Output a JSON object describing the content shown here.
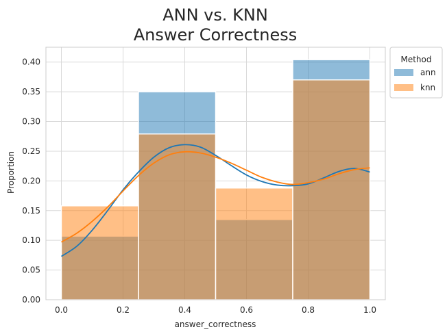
{
  "chart_data": {
    "type": "histogram",
    "title_lines": [
      "ANN vs. KNN",
      "Answer Correctness"
    ],
    "xlabel": "answer_correctness",
    "ylabel": "Proportion",
    "xlim": [
      -0.05,
      1.05
    ],
    "ylim": [
      0,
      0.425
    ],
    "xticks": [
      "0.0",
      "0.2",
      "0.4",
      "0.6",
      "0.8",
      "1.0"
    ],
    "yticks": [
      "0.00",
      "0.05",
      "0.10",
      "0.15",
      "0.20",
      "0.25",
      "0.30",
      "0.35",
      "0.40"
    ],
    "grid": true,
    "bins": [
      [
        0,
        0.25
      ],
      [
        0.25,
        0.5
      ],
      [
        0.5,
        0.75
      ],
      [
        0.75,
        1.0
      ]
    ],
    "series": [
      {
        "name": "ann",
        "color": "#1f77b4",
        "values": [
          0.107,
          0.35,
          0.135,
          0.404
        ],
        "kde": [
          [
            0,
            0.073
          ],
          [
            0.05,
            0.09
          ],
          [
            0.1,
            0.117
          ],
          [
            0.15,
            0.15
          ],
          [
            0.2,
            0.185
          ],
          [
            0.25,
            0.215
          ],
          [
            0.3,
            0.24
          ],
          [
            0.35,
            0.256
          ],
          [
            0.4,
            0.261
          ],
          [
            0.45,
            0.257
          ],
          [
            0.5,
            0.243
          ],
          [
            0.55,
            0.226
          ],
          [
            0.6,
            0.21
          ],
          [
            0.65,
            0.199
          ],
          [
            0.7,
            0.193
          ],
          [
            0.75,
            0.192
          ],
          [
            0.8,
            0.195
          ],
          [
            0.85,
            0.205
          ],
          [
            0.9,
            0.216
          ],
          [
            0.95,
            0.221
          ],
          [
            1.0,
            0.215
          ]
        ]
      },
      {
        "name": "knn",
        "color": "#ff7f0e",
        "values": [
          0.158,
          0.279,
          0.188,
          0.37
        ],
        "kde": [
          [
            0,
            0.097
          ],
          [
            0.05,
            0.112
          ],
          [
            0.1,
            0.132
          ],
          [
            0.15,
            0.156
          ],
          [
            0.2,
            0.183
          ],
          [
            0.25,
            0.209
          ],
          [
            0.3,
            0.23
          ],
          [
            0.35,
            0.244
          ],
          [
            0.4,
            0.249
          ],
          [
            0.45,
            0.247
          ],
          [
            0.5,
            0.24
          ],
          [
            0.55,
            0.23
          ],
          [
            0.6,
            0.218
          ],
          [
            0.65,
            0.206
          ],
          [
            0.7,
            0.198
          ],
          [
            0.75,
            0.194
          ],
          [
            0.8,
            0.197
          ],
          [
            0.85,
            0.203
          ],
          [
            0.9,
            0.212
          ],
          [
            0.95,
            0.219
          ],
          [
            1.0,
            0.222
          ]
        ]
      }
    ],
    "legend": {
      "title": "Method",
      "position": "outside-top-right"
    }
  }
}
